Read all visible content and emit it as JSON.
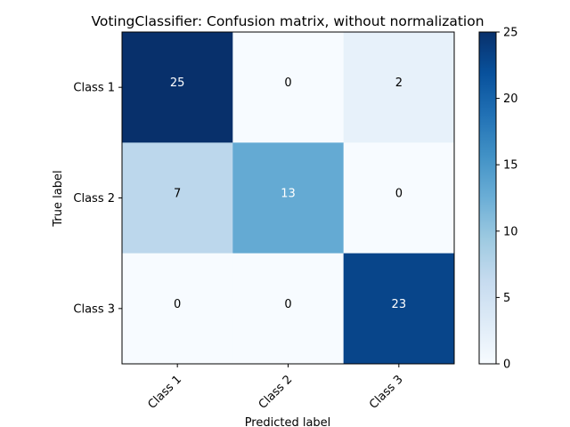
{
  "chart_data": {
    "type": "heatmap",
    "title": "VotingClassifier: Confusion matrix, without normalization",
    "xlabel": "Predicted label",
    "ylabel": "True label",
    "x_categories": [
      "Class 1",
      "Class 2",
      "Class 3"
    ],
    "y_categories": [
      "Class 1",
      "Class 2",
      "Class 3"
    ],
    "values": [
      [
        25,
        0,
        2
      ],
      [
        7,
        13,
        0
      ],
      [
        0,
        0,
        23
      ]
    ],
    "colorbar": {
      "min": 0,
      "max": 25,
      "ticks": [
        "0",
        "5",
        "10",
        "15",
        "20",
        "25"
      ]
    },
    "colormap": "Blues",
    "colors": {
      "light": "#f7fbff",
      "dark": "#08306b"
    },
    "grid": false
  }
}
